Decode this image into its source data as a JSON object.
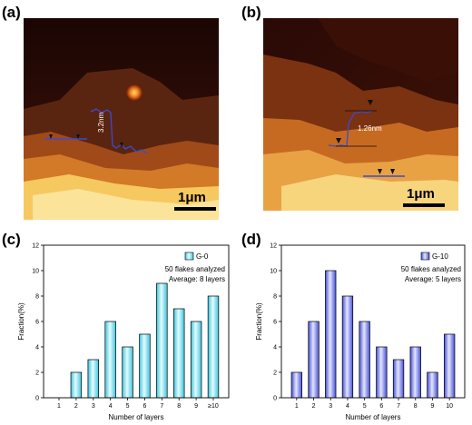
{
  "panels": {
    "a": "(a)",
    "b": "(b)",
    "c": "(c)",
    "d": "(d)"
  },
  "afm": {
    "a": {
      "scalebar": "1μm",
      "step_label": "3.2nm"
    },
    "b": {
      "scalebar": "1μm",
      "step_label": "1.26nm"
    }
  },
  "colors": {
    "g0_fill_light": "#e6fbff",
    "g0_fill_dark": "#3cc6dd",
    "g10_fill_light": "#e4e6ff",
    "g10_fill_dark": "#4650d8",
    "profile_line": "#3a4ad0"
  },
  "chart_data": [
    {
      "type": "bar",
      "categories": [
        "1",
        "2",
        "3",
        "4",
        "5",
        "6",
        "7",
        "8",
        "9",
        "≥10"
      ],
      "series": [
        {
          "name": "G-0",
          "values": [
            0,
            2,
            3,
            6,
            4,
            5,
            9,
            7,
            6,
            8
          ]
        }
      ],
      "xlabel": "Number of  layers",
      "ylabel": "Fraction(%)",
      "ylim": [
        0,
        12
      ],
      "yticks": [
        "0",
        "2",
        "4",
        "6",
        "8",
        "10",
        "12"
      ],
      "annotations": [
        "50 flakes analyzed",
        "Average: 8 layers"
      ],
      "legend": "top-right",
      "grid": false
    },
    {
      "type": "bar",
      "categories": [
        "1",
        "2",
        "3",
        "4",
        "5",
        "6",
        "7",
        "8",
        "9",
        "10"
      ],
      "series": [
        {
          "name": "G-10",
          "values": [
            2,
            6,
            10,
            8,
            6,
            4,
            3,
            4,
            2,
            5
          ]
        }
      ],
      "xlabel": "Number of  layers",
      "ylabel": "Fraction(%)",
      "ylim": [
        0,
        12
      ],
      "yticks": [
        "0",
        "2",
        "4",
        "6",
        "8",
        "10",
        "12"
      ],
      "annotations": [
        "50 flakes analyzed",
        "Average: 5 layers"
      ],
      "legend": "top-right",
      "grid": false
    }
  ]
}
